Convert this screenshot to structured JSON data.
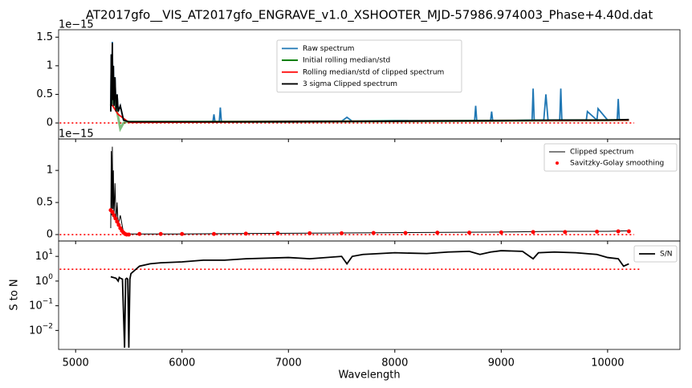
{
  "chart_data": [
    {
      "type": "line",
      "title": "AT2017gfo__VIS_AT2017gfo_ENGRAVE_v1.0_XSHOOTER_MJD-57986.974003_Phase+4.40d.dat",
      "offset_text": "1e−15",
      "ylim": [
        -0.28,
        1.63
      ],
      "yticks": [
        0.0,
        0.5,
        1.0,
        1.5
      ],
      "legend": "upper center",
      "hline": {
        "value": 0,
        "xrange": [
          4850,
          10250
        ],
        "color": "red"
      },
      "series": [
        {
          "name": "Raw spectrum",
          "color": "#1f77b4",
          "style": "line",
          "width": 1.8,
          "x": [
            5330,
            5335,
            5340,
            5345,
            5350,
            5355,
            5360,
            5370,
            5380,
            5390,
            5400,
            5420,
            5450,
            5500,
            5600,
            5800,
            6000,
            6200,
            6290,
            6300,
            6310,
            6350,
            6360,
            6370,
            6500,
            7000,
            7500,
            7550,
            7600,
            8000,
            8500,
            8750,
            8760,
            8770,
            8900,
            8910,
            8920,
            9000,
            9290,
            9300,
            9310,
            9400,
            9420,
            9440,
            9550,
            9560,
            9570,
            9700,
            9800,
            9810,
            9900,
            9910,
            10000,
            10090,
            10100,
            10110,
            10200
          ],
          "values": [
            0.2,
            1.2,
            0.3,
            1.42,
            0.4,
            1.0,
            0.3,
            0.8,
            0.2,
            0.5,
            0.2,
            0.3,
            0.05,
            0.02,
            0.02,
            0.02,
            0.02,
            0.02,
            0.02,
            0.15,
            0.02,
            0.02,
            0.27,
            0.02,
            0.02,
            0.03,
            0.03,
            0.1,
            0.03,
            0.04,
            0.04,
            0.04,
            0.3,
            0.04,
            0.04,
            0.2,
            0.04,
            0.04,
            0.05,
            0.6,
            0.05,
            0.05,
            0.5,
            0.05,
            0.05,
            0.6,
            0.05,
            0.05,
            0.05,
            0.2,
            0.05,
            0.25,
            0.05,
            0.05,
            0.42,
            0.05,
            0.05
          ]
        },
        {
          "name": "Initial rolling median/std",
          "color": "green",
          "style": "line",
          "width": 3,
          "x": [
            5330,
            5360,
            5390,
            5420,
            5450,
            5480,
            5550,
            6000,
            8000,
            10200
          ],
          "values": [
            0.3,
            0.4,
            0.2,
            -0.1,
            0.0,
            0.02,
            0.02,
            0.02,
            0.03,
            0.05
          ]
        },
        {
          "name": "Rolling median/std of clipped spectrum",
          "color": "red",
          "style": "line",
          "width": 1.8,
          "x": [
            5330,
            5400,
            5500,
            10200
          ],
          "values": [
            0.35,
            0.15,
            0.01,
            0.05
          ]
        },
        {
          "name": "3 sigma Clipped spectrum",
          "color": "black",
          "style": "line",
          "width": 1.8,
          "x": [
            5330,
            5335,
            5340,
            5345,
            5350,
            5355,
            5360,
            5370,
            5380,
            5390,
            5400,
            5420,
            5450,
            5500,
            6000,
            7000,
            8000,
            9000,
            9500,
            10000,
            10200
          ],
          "values": [
            0.2,
            1.2,
            0.3,
            1.4,
            0.4,
            1.0,
            0.3,
            0.8,
            0.2,
            0.5,
            0.2,
            0.3,
            0.05,
            0.02,
            0.02,
            0.02,
            0.03,
            0.04,
            0.05,
            0.05,
            0.06
          ]
        }
      ]
    },
    {
      "type": "line",
      "offset_text": "1e−15",
      "ylim": [
        -0.1,
        1.49
      ],
      "yticks": [
        0.0,
        0.5,
        1.0
      ],
      "legend": "upper right",
      "hline": {
        "value": 0,
        "xrange": [
          4850,
          10250
        ],
        "color": "red"
      },
      "series": [
        {
          "name": "Clipped spectrum",
          "color": "black",
          "style": "line",
          "width": 1,
          "x": [
            5330,
            5335,
            5340,
            5345,
            5350,
            5355,
            5360,
            5370,
            5380,
            5390,
            5400,
            5420,
            5450,
            5500,
            6000,
            7000,
            8000,
            9000,
            9500,
            10000,
            10200
          ],
          "values": [
            0.1,
            1.3,
            0.3,
            1.37,
            0.4,
            1.0,
            0.25,
            0.8,
            0.2,
            0.5,
            0.15,
            0.3,
            0.03,
            0.01,
            0.01,
            0.02,
            0.03,
            0.04,
            0.05,
            0.05,
            0.06
          ]
        },
        {
          "name": "Savitzky-Golay smoothing",
          "color": "red",
          "style": "markers",
          "width": 2.5,
          "x": [
            5330,
            5345,
            5360,
            5375,
            5390,
            5405,
            5420,
            5435,
            5450,
            5465,
            5480,
            5500,
            5600,
            5800,
            6000,
            6300,
            6600,
            6900,
            7200,
            7500,
            7800,
            8100,
            8400,
            8700,
            9000,
            9300,
            9600,
            9900,
            10100,
            10200
          ],
          "values": [
            0.38,
            0.35,
            0.3,
            0.25,
            0.2,
            0.15,
            0.1,
            0.06,
            0.03,
            0.01,
            0.0,
            0.0,
            0.01,
            0.01,
            0.01,
            0.01,
            0.015,
            0.02,
            0.02,
            0.02,
            0.025,
            0.025,
            0.03,
            0.03,
            0.035,
            0.04,
            0.04,
            0.045,
            0.05,
            0.05
          ]
        }
      ]
    },
    {
      "type": "line",
      "xlabel": "Wavelength",
      "ylabel": "S to N",
      "log_y": true,
      "xlim": [
        4840,
        10680
      ],
      "xticks": [
        5000,
        6000,
        7000,
        8000,
        9000,
        10000
      ],
      "ylim": [
        0.0017,
        42
      ],
      "yticks": [
        {
          "value": 0.01,
          "label": "10^−2"
        },
        {
          "value": 0.1,
          "label": "10^−1"
        },
        {
          "value": 1,
          "label": "10^0"
        },
        {
          "value": 10,
          "label": "10^1"
        }
      ],
      "legend": "upper right",
      "hline": {
        "value": 3,
        "xrange": [
          4850,
          10300
        ],
        "color": "red"
      },
      "series": [
        {
          "name": "S/N",
          "color": "black",
          "style": "line",
          "width": 1.8,
          "x": [
            5330,
            5380,
            5400,
            5410,
            5420,
            5440,
            5460,
            5470,
            5480,
            5490,
            5500,
            5510,
            5520,
            5600,
            5700,
            5800,
            6000,
            6200,
            6400,
            6600,
            7000,
            7200,
            7500,
            7550,
            7600,
            7700,
            8000,
            8300,
            8500,
            8700,
            8800,
            8900,
            9000,
            9200,
            9300,
            9350,
            9500,
            9700,
            9900,
            10000,
            10100,
            10150,
            10200
          ],
          "values": [
            1.5,
            1.3,
            1.0,
            1.4,
            1.3,
            1.2,
            0.002,
            1.2,
            1.3,
            1.2,
            0.002,
            1.2,
            2,
            4,
            5,
            5.5,
            6,
            7,
            7,
            8,
            9,
            8,
            10,
            5,
            10,
            12,
            14,
            13,
            15,
            16,
            12,
            15,
            17,
            16,
            8,
            14,
            15,
            14,
            12,
            9,
            8,
            4,
            5
          ]
        }
      ]
    }
  ]
}
